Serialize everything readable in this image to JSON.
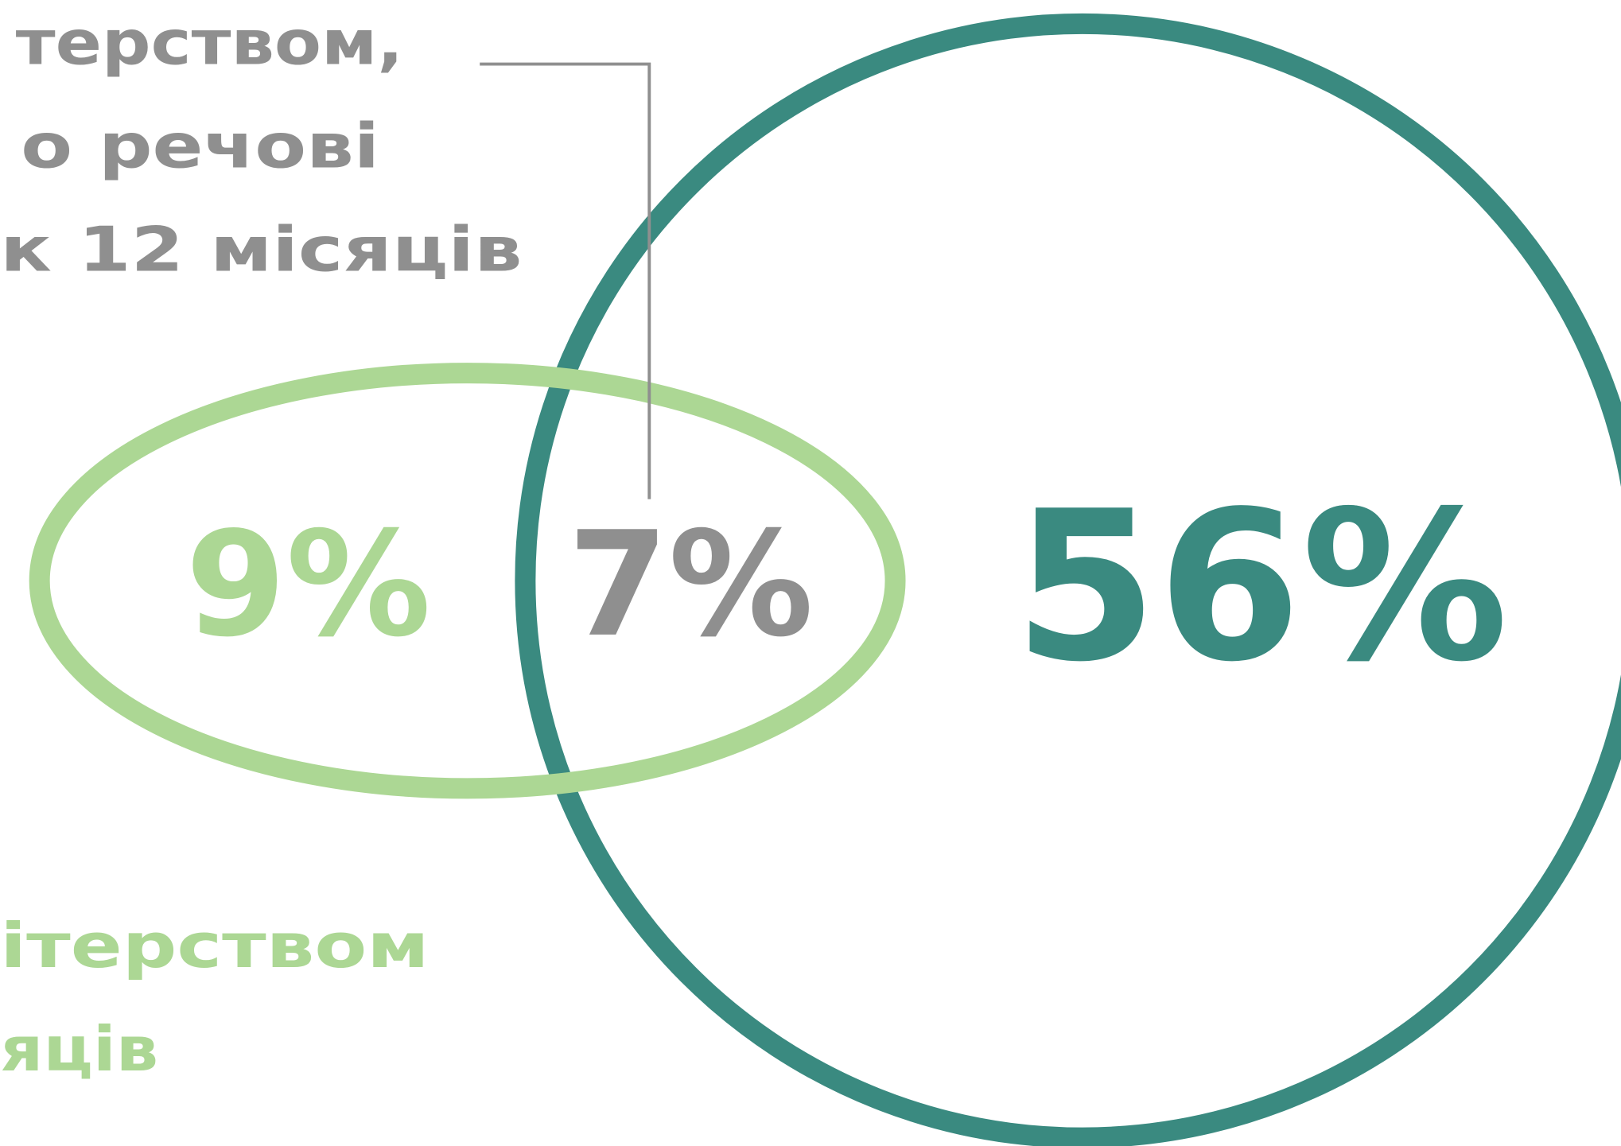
{
  "labels": {
    "top": [
      "терством,",
      "о речові",
      "к 12 місяців"
    ],
    "bottom": [
      "ітерством",
      "яців"
    ]
  },
  "regions": [
    {
      "name": "ellipse-only",
      "value": "9%"
    },
    {
      "name": "overlap",
      "value": "7%"
    },
    {
      "name": "circle-only",
      "value": "56%"
    }
  ]
}
